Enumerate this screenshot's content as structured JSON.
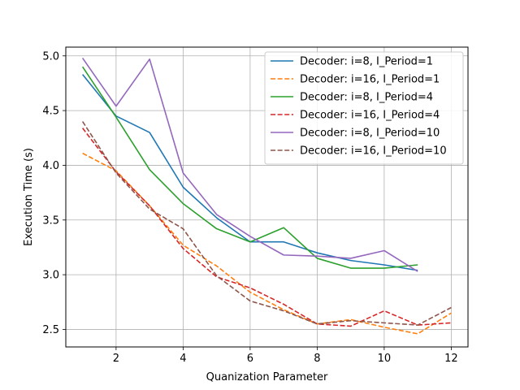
{
  "chart_data": {
    "type": "line",
    "title": "",
    "xlabel": "Quanization Parameter",
    "ylabel": "Execution Time (s)",
    "xlim": [
      0.5,
      12.5
    ],
    "ylim": [
      2.34,
      5.08
    ],
    "xticks": [
      2,
      4,
      6,
      8,
      10,
      12
    ],
    "yticks": [
      2.5,
      3.0,
      3.5,
      4.0,
      4.5,
      5.0
    ],
    "xtick_labels": [
      "2",
      "4",
      "6",
      "8",
      "10",
      "12"
    ],
    "ytick_labels": [
      "2.5",
      "3.0",
      "3.5",
      "4.0",
      "4.5",
      "5.0"
    ],
    "grid": true,
    "legend_position": "top-right",
    "series": [
      {
        "name": "Decoder: i=8, I_Period=1",
        "color": "#1f77b4",
        "style": "solid",
        "x": [
          1,
          2,
          3,
          4,
          5,
          6,
          7,
          8,
          9,
          10,
          11
        ],
        "y": [
          4.83,
          4.45,
          4.3,
          3.8,
          3.52,
          3.3,
          3.3,
          3.2,
          3.13,
          3.09,
          3.04
        ]
      },
      {
        "name": "Decoder: i=16, I_Period=1",
        "color": "#ff7f0e",
        "style": "dashed",
        "x": [
          1,
          2,
          3,
          4,
          5,
          6,
          7,
          8,
          9,
          10,
          11,
          12
        ],
        "y": [
          4.11,
          3.95,
          3.63,
          3.27,
          3.08,
          2.84,
          2.68,
          2.55,
          2.59,
          2.52,
          2.46,
          2.65
        ]
      },
      {
        "name": "Decoder: i=8, I_Period=4",
        "color": "#2ca02c",
        "style": "solid",
        "x": [
          1,
          2,
          3,
          4,
          5,
          6,
          7,
          8,
          9,
          10,
          11
        ],
        "y": [
          4.9,
          4.44,
          3.96,
          3.65,
          3.42,
          3.3,
          3.43,
          3.15,
          3.06,
          3.06,
          3.09
        ]
      },
      {
        "name": "Decoder: i=16, I_Period=4",
        "color": "#d62728",
        "style": "dashed",
        "x": [
          1,
          2,
          3,
          4,
          5,
          6,
          7,
          8,
          9,
          10,
          11,
          12
        ],
        "y": [
          4.34,
          3.94,
          3.63,
          3.24,
          2.98,
          2.88,
          2.73,
          2.55,
          2.53,
          2.67,
          2.54,
          2.56
        ]
      },
      {
        "name": "Decoder: i=8, I_Period=10",
        "color": "#9467bd",
        "style": "solid",
        "x": [
          1,
          2,
          3,
          4,
          5,
          6,
          7,
          8,
          9,
          10,
          11
        ],
        "y": [
          4.98,
          4.54,
          4.97,
          3.93,
          3.55,
          3.35,
          3.18,
          3.17,
          3.15,
          3.22,
          3.03
        ]
      },
      {
        "name": "Decoder: i=16, I_Period=10",
        "color": "#8c564b",
        "style": "dashed",
        "x": [
          1,
          2,
          3,
          4,
          5,
          6,
          7,
          8,
          9,
          10,
          11,
          12
        ],
        "y": [
          4.4,
          3.93,
          3.6,
          3.42,
          2.99,
          2.76,
          2.67,
          2.55,
          2.58,
          2.56,
          2.54,
          2.7
        ]
      }
    ]
  }
}
